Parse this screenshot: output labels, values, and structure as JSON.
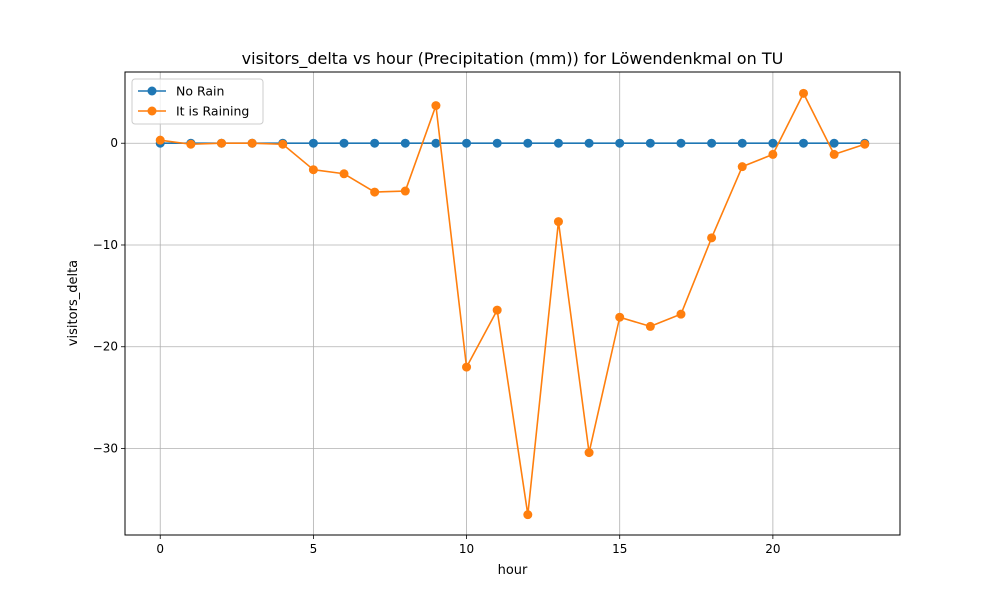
{
  "chart_data": {
    "type": "line",
    "title": "visitors_delta vs hour (Precipitation (mm)) for Löwendenkmal on TU",
    "xlabel": "hour",
    "ylabel": "visitors_delta",
    "xlim": [
      -1.15,
      24.15
    ],
    "ylim": [
      -38.5,
      7.0
    ],
    "xticks": [
      0,
      5,
      10,
      15,
      20
    ],
    "yticks": [
      0,
      -10,
      -20,
      -30
    ],
    "ytick_labels": [
      "0",
      "−10",
      "−20",
      "−30"
    ],
    "grid": true,
    "legend_position": "top-left",
    "x": [
      0,
      1,
      2,
      3,
      4,
      5,
      6,
      7,
      8,
      9,
      10,
      11,
      12,
      13,
      14,
      15,
      16,
      17,
      18,
      19,
      20,
      21,
      22,
      23
    ],
    "series": [
      {
        "name": "No Rain",
        "color": "#1f77b4",
        "values": [
          0,
          0,
          0,
          0,
          0,
          0,
          0,
          0,
          0,
          0,
          0,
          0,
          0,
          0,
          0,
          0,
          0,
          0,
          0,
          0,
          0,
          0,
          0,
          0
        ]
      },
      {
        "name": "It is Raining",
        "color": "#ff7f0e",
        "values": [
          0.3,
          -0.1,
          0.0,
          0.0,
          -0.1,
          -2.6,
          -3.0,
          -4.8,
          -4.7,
          3.7,
          -22.0,
          -16.4,
          -36.5,
          -7.7,
          -30.4,
          -17.1,
          -18.0,
          -16.8,
          -9.3,
          -2.3,
          -1.1,
          4.9,
          -1.1,
          -0.1
        ]
      }
    ]
  }
}
